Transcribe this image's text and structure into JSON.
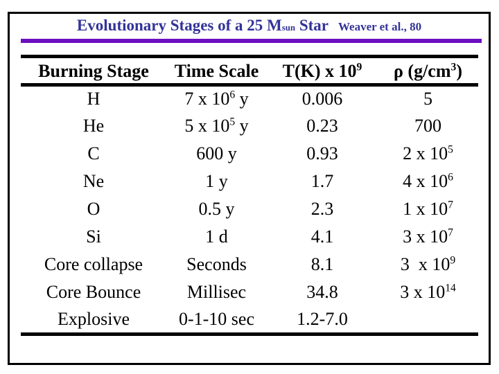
{
  "slide": {
    "title": {
      "pre": "Evolutionary Stages of a 25 M",
      "sub": "sun",
      "post": " Star"
    },
    "attribution": "Weaver et al., 80",
    "colors": {
      "title_text": "#333399",
      "divider_purple": "#6C0EC0",
      "divider_black": "#000000",
      "frame_border": "#000000",
      "background": "#FFFFFF"
    }
  },
  "table": {
    "headers": {
      "stage": "Burning Stage",
      "time": "Time Scale",
      "temp": {
        "pre": "T(K) x 10",
        "sup": "9"
      },
      "rho": {
        "pre": "ρ (g/cm",
        "sup": "3",
        "post": ")"
      }
    },
    "rows": [
      {
        "stage": "H",
        "time": {
          "pre": "7 x 10",
          "sup": "6",
          "post": " y"
        },
        "temp": "0.006",
        "rho": {
          "pre": "5"
        }
      },
      {
        "stage": "He",
        "time": {
          "pre": "5 x 10",
          "sup": "5",
          "post": " y"
        },
        "temp": "0.23",
        "rho": {
          "pre": "700"
        }
      },
      {
        "stage": "C",
        "time": {
          "pre": "600 y"
        },
        "temp": "0.93",
        "rho": {
          "pre": "2 x 10",
          "sup": "5"
        }
      },
      {
        "stage": "Ne",
        "time": {
          "pre": "1 y"
        },
        "temp": "1.7",
        "rho": {
          "pre": "4 x 10",
          "sup": "6"
        }
      },
      {
        "stage": "O",
        "time": {
          "pre": "0.5 y"
        },
        "temp": "2.3",
        "rho": {
          "pre": "1 x 10",
          "sup": "7"
        }
      },
      {
        "stage": "Si",
        "time": {
          "pre": "1 d"
        },
        "temp": "4.1",
        "rho": {
          "pre": "3 x 10",
          "sup": "7"
        }
      },
      {
        "stage": "Core collapse",
        "time": {
          "pre": "Seconds"
        },
        "temp": "8.1",
        "rho": {
          "pre": "3  x 10",
          "sup": "9"
        }
      },
      {
        "stage": "Core Bounce",
        "time": {
          "pre": "Millisec"
        },
        "temp": "34.8",
        "rho": {
          "pre": "3 x 10",
          "sup": "14"
        }
      },
      {
        "stage": "Explosive",
        "time": {
          "pre": "0-1-10 sec"
        },
        "temp": "1.2-7.0",
        "rho": {
          "pre": ""
        }
      }
    ]
  },
  "chart_data": {
    "type": "table",
    "title": "Evolutionary Stages of a 25 Msun Star",
    "source": "Weaver et al., 80",
    "columns": [
      "Burning Stage",
      "Time Scale",
      "T(K) x 10^9",
      "ρ (g/cm^3)"
    ],
    "rows": [
      [
        "H",
        "7 x 10^6 y",
        "0.006",
        "5"
      ],
      [
        "He",
        "5 x 10^5 y",
        "0.23",
        "700"
      ],
      [
        "C",
        "600 y",
        "0.93",
        "2 x 10^5"
      ],
      [
        "Ne",
        "1 y",
        "1.7",
        "4 x 10^6"
      ],
      [
        "O",
        "0.5 y",
        "2.3",
        "1 x 10^7"
      ],
      [
        "Si",
        "1 d",
        "4.1",
        "3 x 10^7"
      ],
      [
        "Core collapse",
        "Seconds",
        "8.1",
        "3 x 10^9"
      ],
      [
        "Core Bounce",
        "Millisec",
        "34.8",
        "3 x 10^14"
      ],
      [
        "Explosive",
        "0-1-10 sec",
        "1.2-7.0",
        ""
      ]
    ]
  }
}
